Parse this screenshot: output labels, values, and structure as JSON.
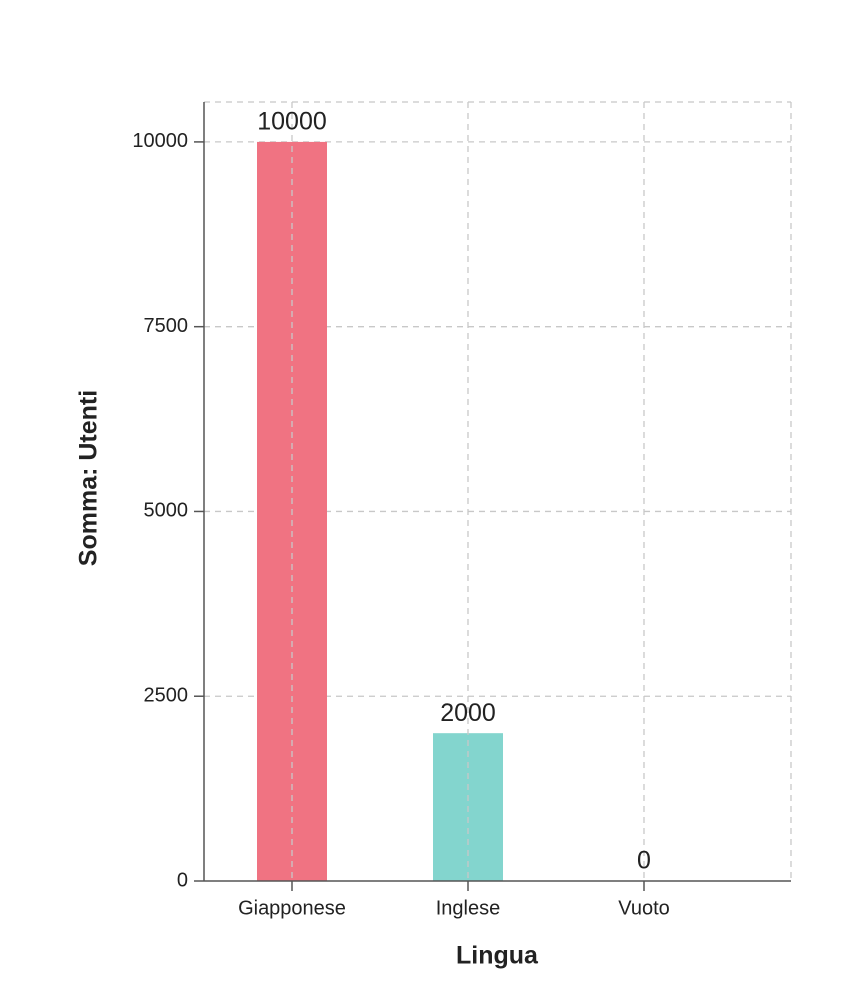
{
  "chart_data": {
    "type": "bar",
    "x_label": "Lingua",
    "y_label": "Somma: Utenti",
    "categories": [
      "Giapponese",
      "Inglese",
      "Vuoto"
    ],
    "values": [
      10000,
      2000,
      0
    ],
    "colors": [
      "#f07382",
      "#83d5ce",
      "#a0a0f0"
    ],
    "ylim": [
      0,
      10540
    ],
    "yticks": [
      0,
      2500,
      5000,
      7500,
      10000
    ],
    "grid": true
  }
}
